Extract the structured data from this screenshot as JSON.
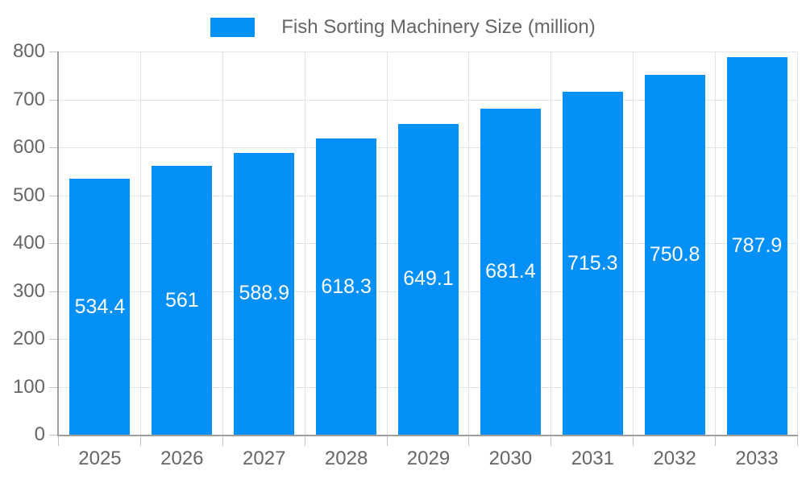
{
  "chart_data": {
    "type": "bar",
    "title": "Fish Sorting Machinery Size (million)",
    "categories": [
      "2025",
      "2026",
      "2027",
      "2028",
      "2029",
      "2030",
      "2031",
      "2032",
      "2033"
    ],
    "values": [
      534.4,
      561,
      588.9,
      618.3,
      649.1,
      681.4,
      715.3,
      750.8,
      787.9
    ],
    "value_labels": [
      "534.4",
      "561",
      "588.9",
      "618.3",
      "649.1",
      "681.4",
      "715.3",
      "750.8",
      "787.9"
    ],
    "xlabel": "",
    "ylabel": "",
    "ylim": [
      0,
      800
    ],
    "ytick_step": 100,
    "legend_position": "top",
    "grid": true,
    "value_label_position": "center-of-bar",
    "colors": {
      "bar": "#0590f8",
      "grid": "#e4e4e4",
      "axis": "#9e9e9e",
      "tick": "#c2c2c2",
      "tick_label": "#666666",
      "legend_text": "#666666",
      "value_label": "#ffffff",
      "background": "#ffffff"
    }
  }
}
